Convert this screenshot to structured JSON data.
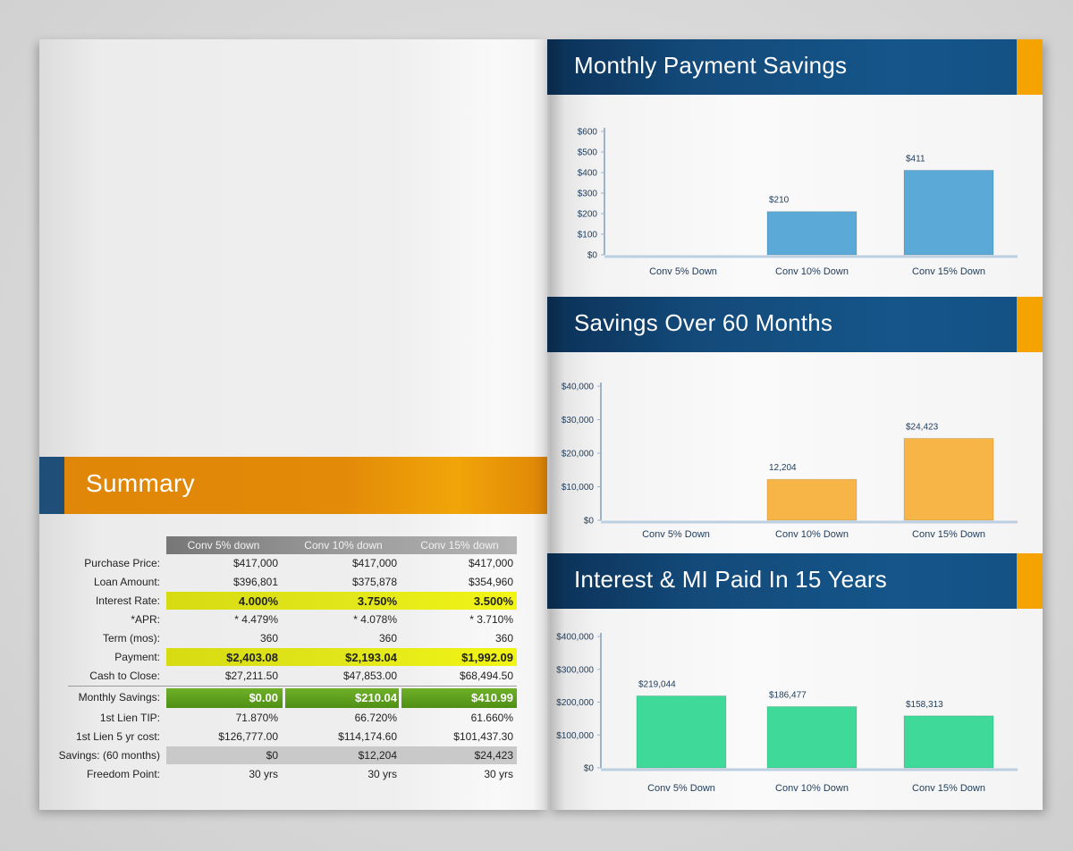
{
  "summary": {
    "title": "Summary",
    "columns": [
      "Conv 5% down",
      "Conv 10% down",
      "Conv 15% down"
    ],
    "rows": [
      {
        "label": "Purchase Price:",
        "values": [
          "$417,000",
          "$417,000",
          "$417,000"
        ]
      },
      {
        "label": "Loan Amount:",
        "values": [
          "$396,801",
          "$375,878",
          "$354,960"
        ]
      },
      {
        "label": "Interest Rate:",
        "values": [
          "4.000%",
          "3.750%",
          "3.500%"
        ]
      },
      {
        "label": "*APR:",
        "values": [
          "* 4.479%",
          "* 4.078%",
          "* 3.710%"
        ]
      },
      {
        "label": "Term (mos):",
        "values": [
          "360",
          "360",
          "360"
        ]
      },
      {
        "label": "Payment:",
        "values": [
          "$2,403.08",
          "$2,193.04",
          "$1,992.09"
        ]
      },
      {
        "label": "Cash to Close:",
        "values": [
          "$27,211.50",
          "$47,853.00",
          "$68,494.50"
        ]
      },
      {
        "label": "Monthly Savings:",
        "values": [
          "$0.00",
          "$210.04",
          "$410.99"
        ]
      },
      {
        "label": "1st Lien TIP:",
        "values": [
          "71.870%",
          "66.720%",
          "61.660%"
        ]
      },
      {
        "label": "1st Lien 5 yr cost:",
        "values": [
          "$126,777.00",
          "$114,174.60",
          "$101,437.30"
        ]
      },
      {
        "label": "Savings: (60 months)",
        "values": [
          "$0",
          "$12,204",
          "$24,423"
        ]
      },
      {
        "label": "Freedom Point:",
        "values": [
          "30 yrs",
          "30 yrs",
          "30 yrs"
        ]
      }
    ]
  },
  "colors": {
    "orange_band": "#e38a08",
    "navy_band": "#134a7a",
    "accent_orange": "#f5a300",
    "highlight_yellow": "#e1e61b",
    "highlight_green": "#5d9e1e",
    "bar_blue": "#5aa9d6",
    "bar_orange": "#f7b547",
    "bar_green": "#3fd99a"
  },
  "sections": [
    {
      "title": "Monthly Payment Savings"
    },
    {
      "title": "Savings Over 60 Months"
    },
    {
      "title": "Interest & MI Paid In 15 Years"
    }
  ],
  "chart_data": [
    {
      "type": "bar",
      "title": "Monthly Payment Savings",
      "categories": [
        "Conv 5% Down",
        "Conv 10% Down",
        "Conv 15% Down"
      ],
      "values": [
        0,
        210,
        411
      ],
      "data_labels": [
        "",
        "$210",
        "$411"
      ],
      "ylim": [
        0,
        600
      ],
      "yticks": [
        0,
        100,
        200,
        300,
        400,
        500,
        600
      ],
      "ytick_labels": [
        "$0",
        "$100",
        "$200",
        "$300",
        "$400",
        "$500",
        "$600"
      ],
      "color": "#5aa9d6"
    },
    {
      "type": "bar",
      "title": "Savings Over 60 Months",
      "categories": [
        "Conv 5% Down",
        "Conv 10% Down",
        "Conv 15% Down"
      ],
      "values": [
        0,
        12204,
        24423
      ],
      "data_labels": [
        "",
        "12,204",
        "$24,423"
      ],
      "ylim": [
        0,
        40000
      ],
      "yticks": [
        0,
        10000,
        20000,
        30000,
        40000
      ],
      "ytick_labels": [
        "$0",
        "$10,000",
        "$20,000",
        "$30,000",
        "$40,000"
      ],
      "color": "#f7b547"
    },
    {
      "type": "bar",
      "title": "Interest & MI Paid In 15 Years",
      "categories": [
        "Conv 5% Down",
        "Conv 10% Down",
        "Conv 15% Down"
      ],
      "values": [
        219044,
        186477,
        158313
      ],
      "data_labels": [
        "$219,044",
        "$186,477",
        "$158,313"
      ],
      "ylim": [
        0,
        400000
      ],
      "yticks": [
        0,
        100000,
        200000,
        300000,
        400000
      ],
      "ytick_labels": [
        "$0",
        "$100,000",
        "$200,000",
        "$300,000",
        "$400,000"
      ],
      "color": "#3fd99a"
    }
  ]
}
